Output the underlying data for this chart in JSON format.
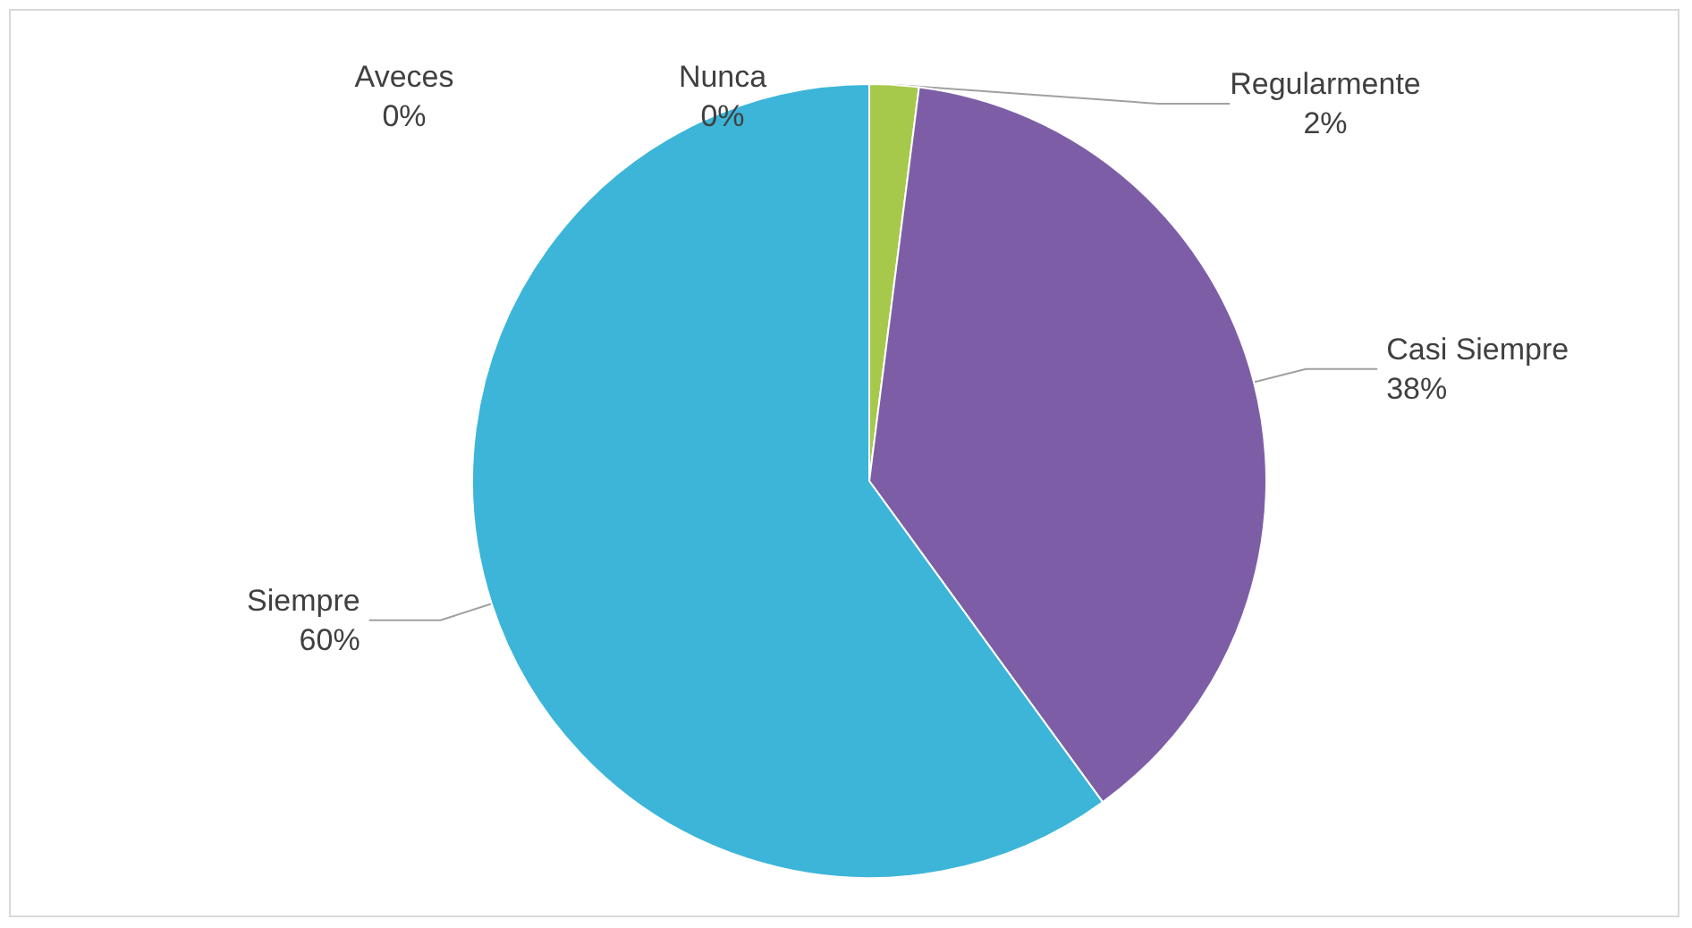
{
  "chart_data": {
    "type": "pie",
    "categories": [
      "Aveces",
      "Nunca",
      "Regularmente",
      "Casi Siempre",
      "Siempre"
    ],
    "values": [
      0,
      0,
      2,
      38,
      60
    ],
    "value_labels": [
      "0%",
      "0%",
      "2%",
      "38%",
      "60%"
    ],
    "colors": [
      "#c0504d",
      "#4f81bd",
      "#a6c94b",
      "#7d5ea6",
      "#3cb5d9"
    ],
    "legend": false
  }
}
